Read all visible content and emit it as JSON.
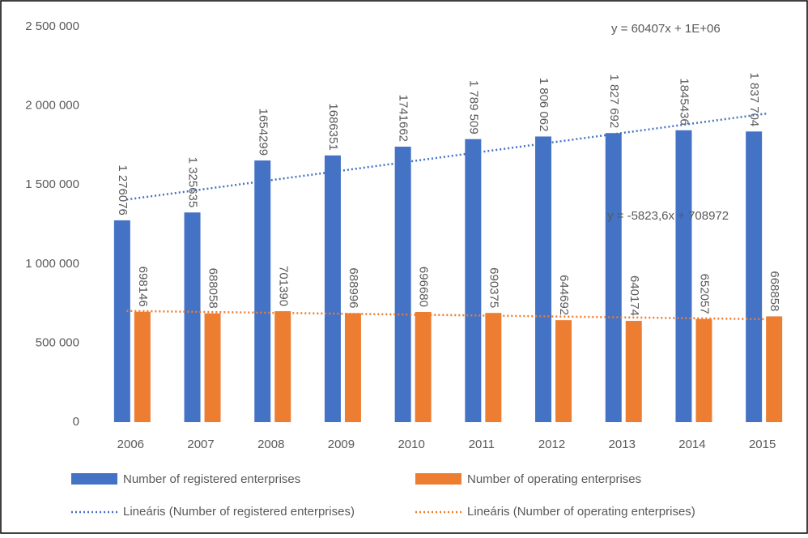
{
  "chart_data": {
    "type": "bar",
    "categories": [
      "2006",
      "2007",
      "2008",
      "2009",
      "2010",
      "2011",
      "2012",
      "2013",
      "2014",
      "2015"
    ],
    "series": [
      {
        "name": "Number of registered enterprises",
        "color": "#4472c4",
        "values": [
          1276076,
          1325635,
          1654299,
          1686351,
          1741662,
          1789509,
          1806062,
          1827692,
          1845436,
          1837704
        ],
        "value_labels": [
          "1 276076",
          "1 325635",
          "1654299",
          "1686351",
          "1741662",
          "1 789 509",
          "1 806 062",
          "1 827 692",
          "1845436",
          "1 837 704"
        ],
        "trendline": {
          "name": "Lineáris (Number of registered enterprises)",
          "equation": "y = 60407x + 1E+06"
        }
      },
      {
        "name": "Number of operating enterprises",
        "color": "#ed7d31",
        "values": [
          698146,
          688058,
          701390,
          688996,
          696680,
          690375,
          644692,
          640174,
          652057,
          668858
        ],
        "trendline": {
          "name": "Lineáris (Number of operating enterprises)",
          "equation": "y = -5823,6x + 708972"
        }
      }
    ],
    "ylim": [
      0,
      2500000
    ],
    "yticks": [
      0,
      {
        "value": 500000,
        "label": "500 000"
      },
      {
        "value": 1000000,
        "label": "1 000 000"
      },
      {
        "value": 1500000,
        "label": "1 500 000"
      },
      {
        "value": 2000000,
        "label": "2 000 000"
      },
      {
        "value": 2500000,
        "label": "2 500 000"
      }
    ],
    "grid": false
  }
}
